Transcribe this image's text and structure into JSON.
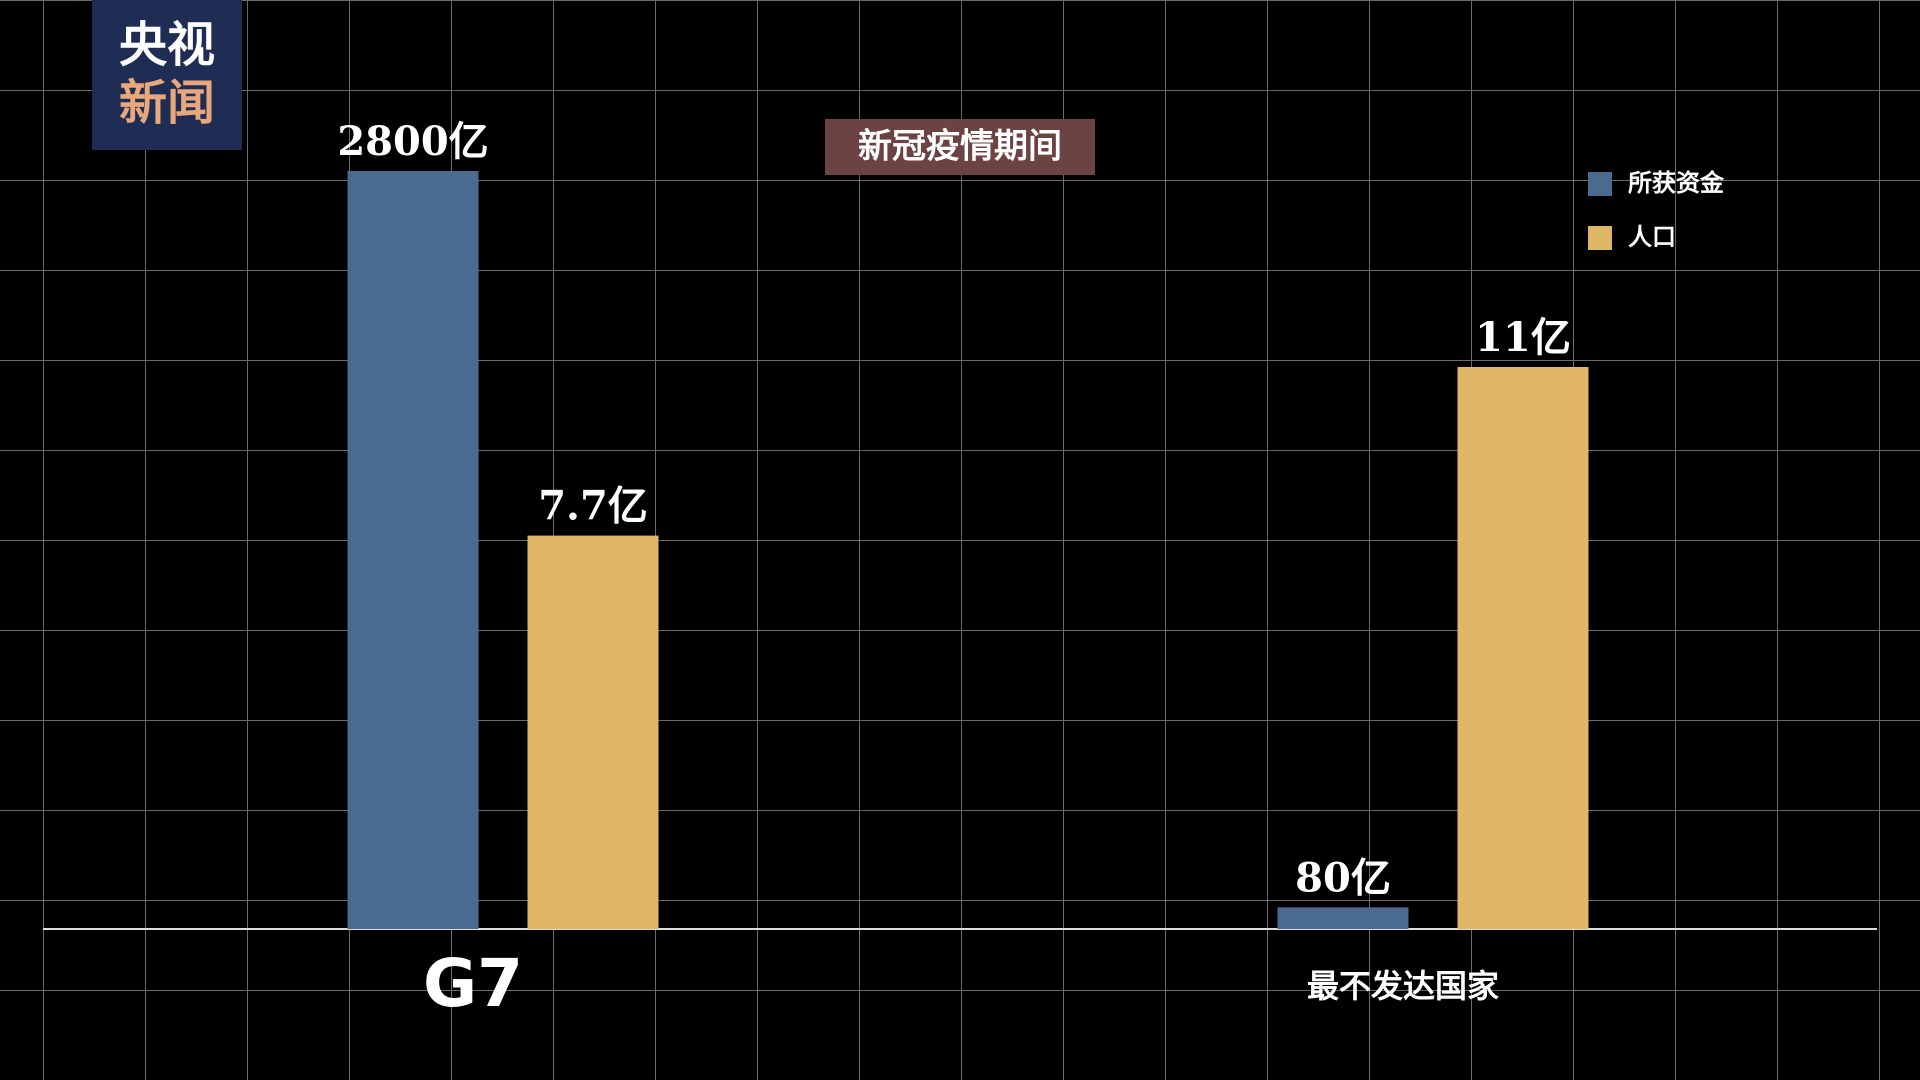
{
  "logo": [
    "央视",
    "新闻"
  ],
  "chart_data": {
    "type": "bar",
    "title": "新冠疫情期间",
    "categories": [
      "G7",
      "最不发达国家"
    ],
    "series": [
      {
        "name": "所获资金",
        "color": "#4a6a90",
        "values": [
          2800,
          80
        ],
        "value_labels": [
          "2800亿",
          "80亿"
        ]
      },
      {
        "name": "人口",
        "color": "#e0b865",
        "values": [
          7.7,
          11
        ],
        "value_labels": [
          "7.7亿",
          "11亿"
        ]
      }
    ],
    "legend": "top-right"
  }
}
